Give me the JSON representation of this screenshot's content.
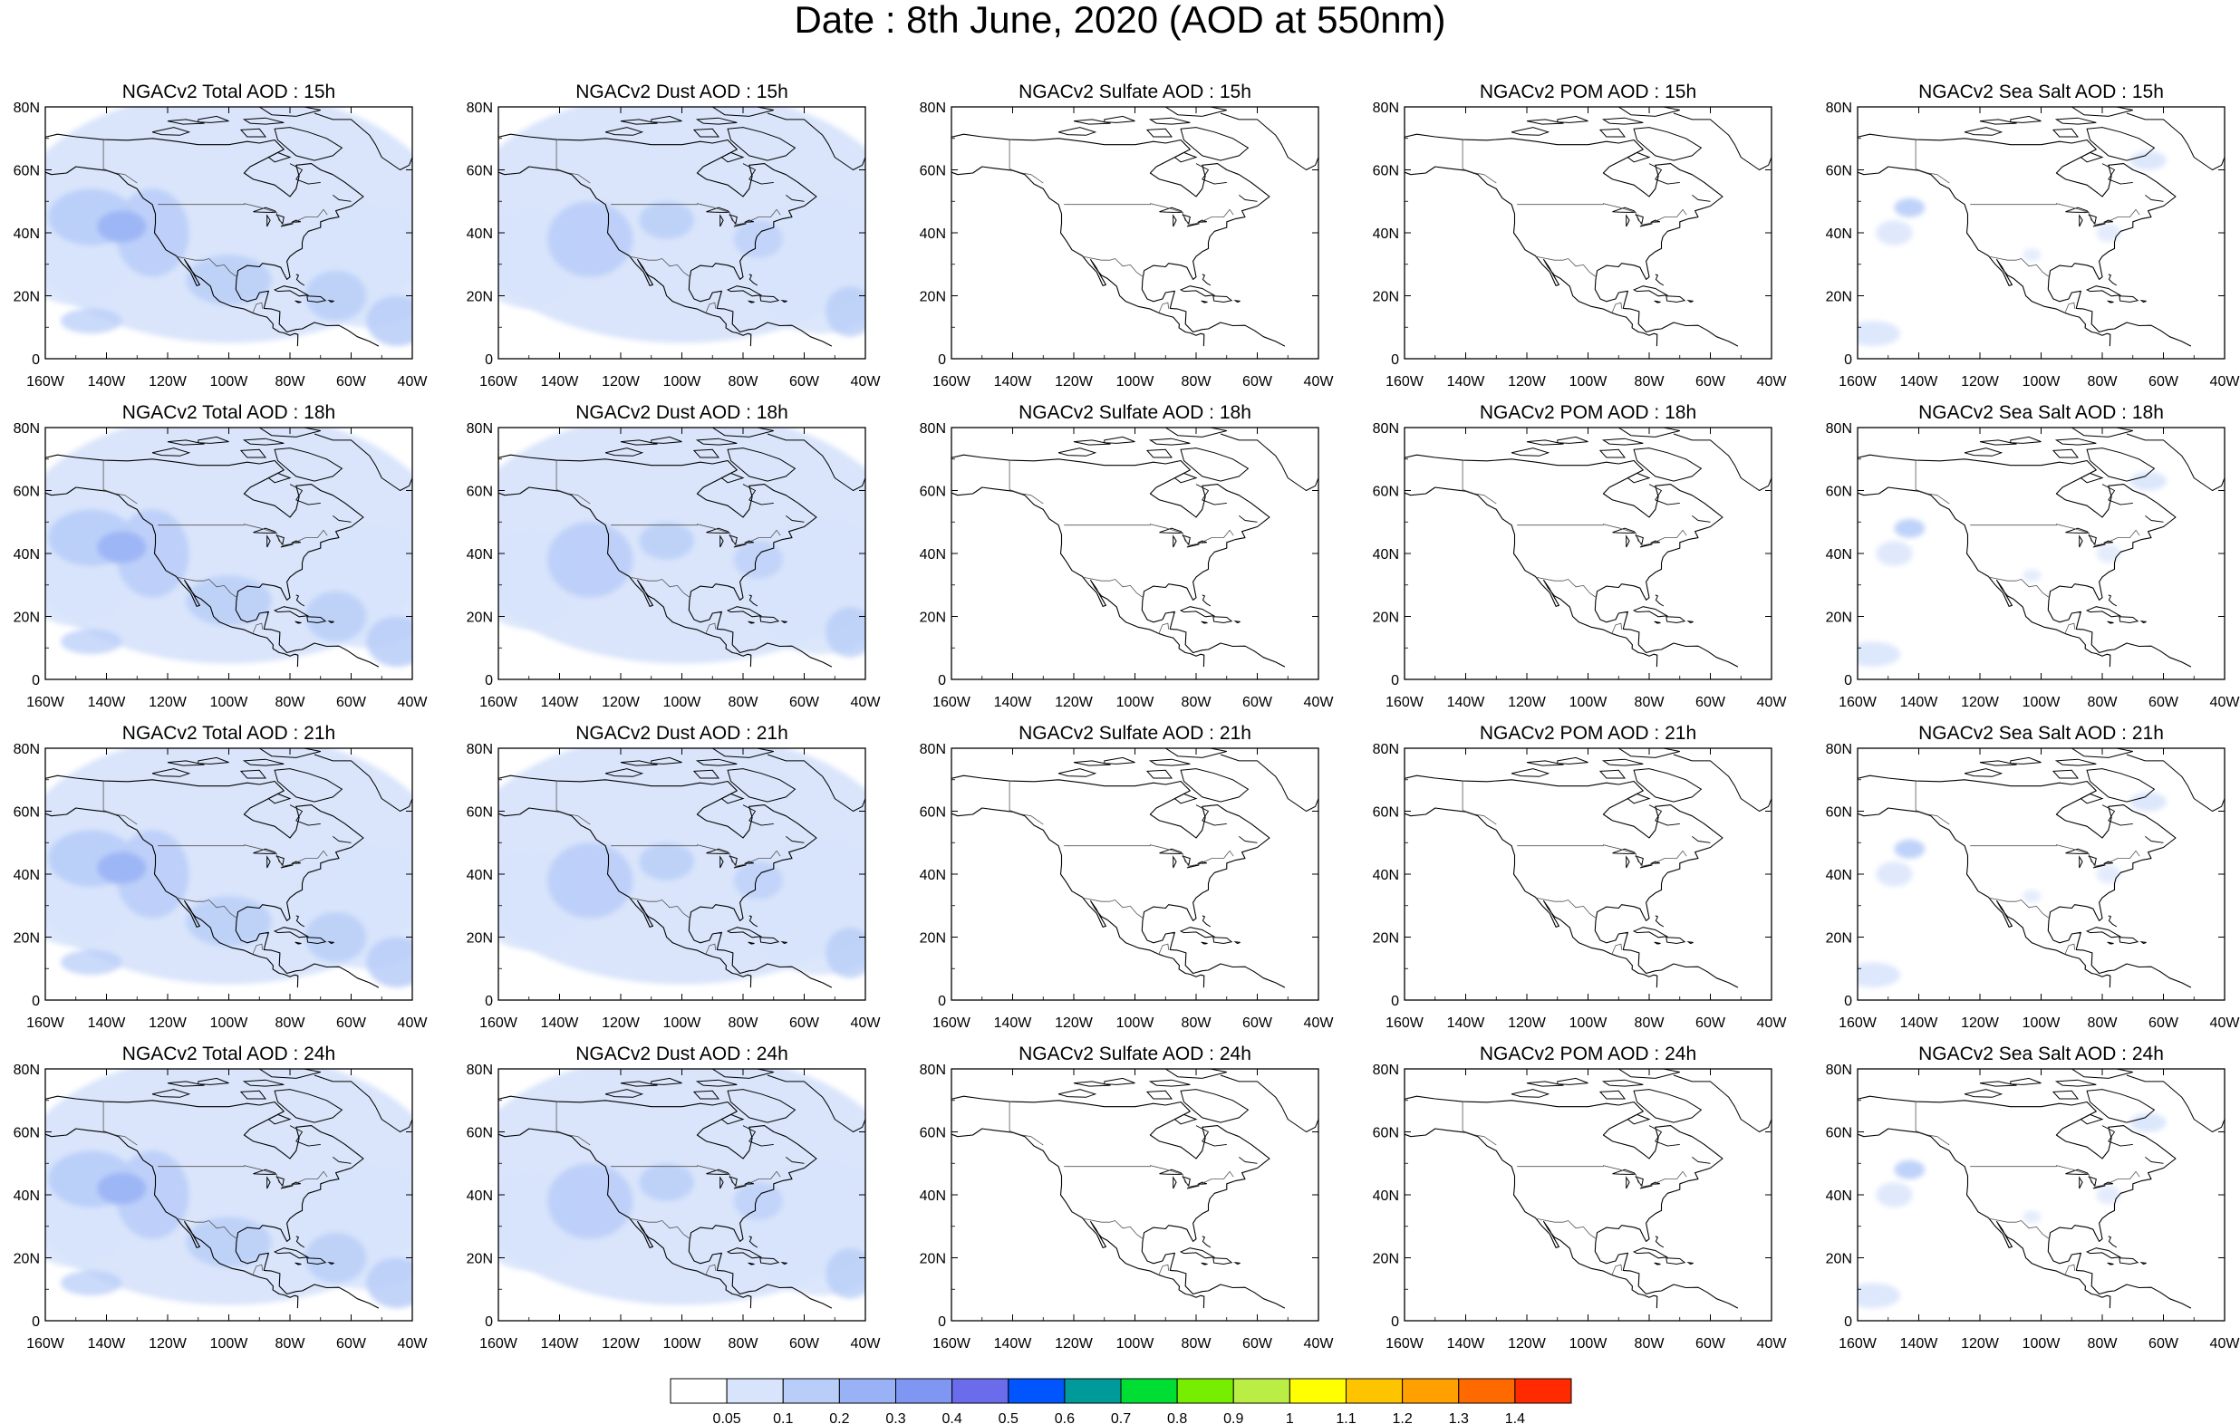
{
  "title": "Date : 8th June, 2020 (AOD at 550nm)",
  "axes": {
    "lat_labels": [
      "80N",
      "60N",
      "40N",
      "20N",
      "0"
    ],
    "lon_labels": [
      "160W",
      "140W",
      "120W",
      "100W",
      "80W",
      "60W",
      "40W"
    ]
  },
  "colors": {
    "coastline": "#000000",
    "border": "#555555"
  },
  "panels": [
    {
      "title": "NGACv2 Total AOD : 15h",
      "field": "total"
    },
    {
      "title": "NGACv2 Dust AOD : 15h",
      "field": "dust"
    },
    {
      "title": "NGACv2 Sulfate AOD : 15h",
      "field": "sulfate"
    },
    {
      "title": "NGACv2 POM AOD : 15h",
      "field": "pom"
    },
    {
      "title": "NGACv2 Sea Salt AOD : 15h",
      "field": "seasalt"
    },
    {
      "title": "NGACv2 Total AOD : 18h",
      "field": "total"
    },
    {
      "title": "NGACv2 Dust AOD : 18h",
      "field": "dust"
    },
    {
      "title": "NGACv2 Sulfate AOD : 18h",
      "field": "sulfate"
    },
    {
      "title": "NGACv2 POM AOD : 18h",
      "field": "pom"
    },
    {
      "title": "NGACv2 Sea Salt AOD : 18h",
      "field": "seasalt"
    },
    {
      "title": "NGACv2 Total AOD : 21h",
      "field": "total"
    },
    {
      "title": "NGACv2 Dust AOD : 21h",
      "field": "dust"
    },
    {
      "title": "NGACv2 Sulfate AOD : 21h",
      "field": "sulfate"
    },
    {
      "title": "NGACv2 POM AOD : 21h",
      "field": "pom"
    },
    {
      "title": "NGACv2 Sea Salt AOD : 21h",
      "field": "seasalt"
    },
    {
      "title": "NGACv2 Total AOD : 24h",
      "field": "total"
    },
    {
      "title": "NGACv2 Dust AOD : 24h",
      "field": "dust"
    },
    {
      "title": "NGACv2 Sulfate AOD : 24h",
      "field": "sulfate"
    },
    {
      "title": "NGACv2 POM AOD : 24h",
      "field": "pom"
    },
    {
      "title": "NGACv2 Sea Salt  AOD : 24h",
      "field": "seasalt"
    }
  ],
  "colorbar": {
    "labels": [
      "0.05",
      "0.1",
      "0.2",
      "0.3",
      "0.4",
      "0.5",
      "0.6",
      "0.7",
      "0.8",
      "0.9",
      "1",
      "1.1",
      "1.2",
      "1.3",
      "1.4"
    ],
    "colors": [
      "#ffffff",
      "#d8e4fb",
      "#b8cdf8",
      "#98b2f5",
      "#7f97f2",
      "#6a6cec",
      "#0055ff",
      "#009a9a",
      "#00dd33",
      "#77ee00",
      "#bbee44",
      "#ffff00",
      "#ffc400",
      "#ffa000",
      "#ff6a00",
      "#ff2a00"
    ]
  }
}
